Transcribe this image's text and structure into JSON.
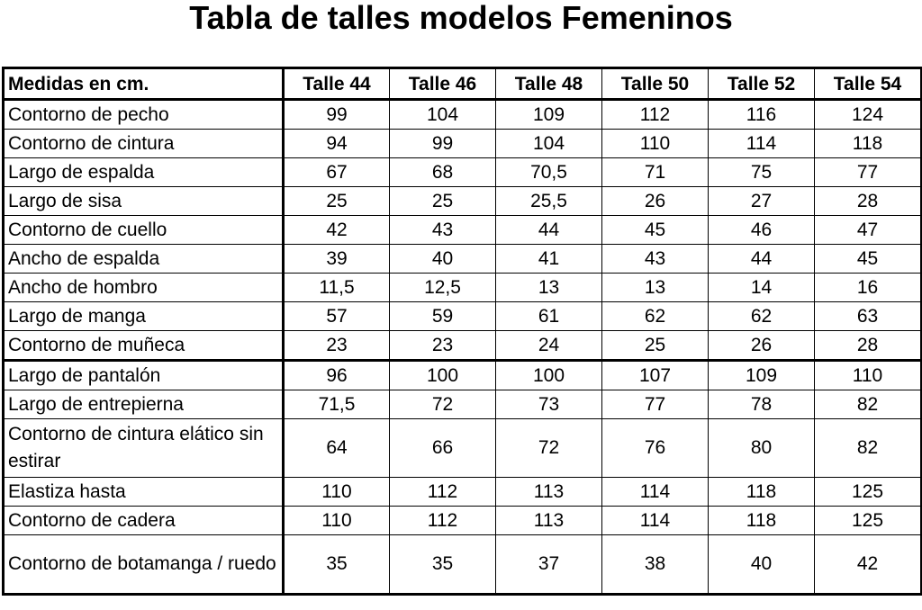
{
  "title": "Tabla de talles modelos Femeninos",
  "table": {
    "headers": [
      "Medidas en cm.",
      "Talle 44",
      "Talle 46",
      "Talle 48",
      "Talle 50",
      "Talle 52",
      "Talle 54"
    ],
    "rows": [
      {
        "label": "Contorno de pecho",
        "values": [
          "99",
          "104",
          "109",
          "112",
          "116",
          "124"
        ]
      },
      {
        "label": "Contorno de cintura",
        "values": [
          "94",
          "99",
          "104",
          "110",
          "114",
          "118"
        ]
      },
      {
        "label": "Largo de espalda",
        "values": [
          "67",
          "68",
          "70,5",
          "71",
          "75",
          "77"
        ]
      },
      {
        "label": "Largo de sisa",
        "values": [
          "25",
          "25",
          "25,5",
          "26",
          "27",
          "28"
        ]
      },
      {
        "label": "Contorno de cuello",
        "values": [
          "42",
          "43",
          "44",
          "45",
          "46",
          "47"
        ]
      },
      {
        "label": "Ancho de espalda",
        "values": [
          "39",
          "40",
          "41",
          "43",
          "44",
          "45"
        ]
      },
      {
        "label": "Ancho de hombro",
        "values": [
          "11,5",
          "12,5",
          "13",
          "13",
          "14",
          "16"
        ]
      },
      {
        "label": "Largo de manga",
        "values": [
          "57",
          "59",
          "61",
          "62",
          "62",
          "63"
        ]
      },
      {
        "label": "Contorno de muñeca",
        "values": [
          "23",
          "23",
          "24",
          "25",
          "26",
          "28"
        ]
      },
      {
        "label": "Largo de pantalón",
        "values": [
          "96",
          "100",
          "100",
          "107",
          "109",
          "110"
        ]
      },
      {
        "label": "Largo de entrepierna",
        "values": [
          "71,5",
          "72",
          "73",
          "77",
          "78",
          "82"
        ]
      },
      {
        "label": "Contorno de cintura elático sin estirar",
        "values": [
          "64",
          "66",
          "72",
          "76",
          "80",
          "82"
        ]
      },
      {
        "label": "Elastiza hasta",
        "values": [
          "110",
          "112",
          "113",
          "114",
          "118",
          "125"
        ]
      },
      {
        "label": "Contorno de cadera",
        "values": [
          "110",
          "112",
          "113",
          "114",
          "118",
          "125"
        ]
      },
      {
        "label": "Contorno de botamanga / ruedo",
        "values": [
          "35",
          "35",
          "37",
          "38",
          "40",
          "42"
        ]
      }
    ]
  }
}
